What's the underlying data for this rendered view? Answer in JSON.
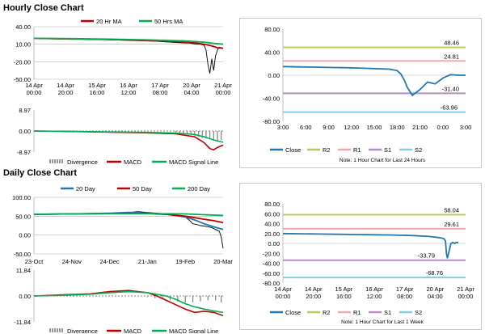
{
  "sections": {
    "hourly_title": "Hourly Close Chart",
    "daily_title": "Daily Close Chart"
  },
  "colors": {
    "ma20": "#c00000",
    "ma50": "#00b050",
    "close": "#1f77b4",
    "price": "#000000",
    "r2": "#b5cc5a",
    "r1": "#f4a6a6",
    "s1": "#b48cc8",
    "s2": "#7fd0e6",
    "divergence": "#808080",
    "macd": "#c00000",
    "signal": "#00b050",
    "grid": "#b0b0b0",
    "zero": "#000000"
  },
  "chart_data": [
    {
      "id": "hourly_price",
      "type": "line",
      "legend": [
        "20 Hr MA",
        "50 Hrs MA"
      ],
      "x_ticks": [
        "14 Apr\n00:00",
        "14 Apr\n20:00",
        "15 Apr\n16:00",
        "16 Apr\n12:00",
        "17 Apr\n08:00",
        "20 Apr\n04:00",
        "21 Apr\n00:00"
      ],
      "y_ticks": [
        "40.00",
        "10.00",
        "-20.00",
        "-50.00"
      ],
      "ylim": [
        -50,
        40
      ],
      "series": [
        {
          "name": "price",
          "x": [
            0,
            5,
            10,
            15,
            20,
            25,
            30,
            35,
            40,
            45,
            50,
            55,
            60,
            65,
            70,
            75,
            80,
            82,
            84,
            86,
            88,
            90,
            91,
            92,
            93,
            94,
            95,
            96,
            97,
            98,
            100
          ],
          "values": [
            20,
            19.5,
            19,
            18.8,
            18.6,
            18.4,
            18.2,
            18,
            17.5,
            17,
            16.5,
            16,
            15.5,
            15,
            14,
            13,
            12,
            12,
            11,
            10,
            10,
            8,
            0,
            -25,
            -40,
            -15,
            -35,
            -10,
            0,
            5,
            3
          ]
        },
        {
          "name": "20 Hr MA",
          "x": [
            0,
            20,
            40,
            60,
            80,
            85,
            90,
            94,
            97,
            100
          ],
          "values": [
            20,
            19,
            18,
            16.5,
            14,
            12.5,
            10,
            7,
            4,
            3
          ]
        },
        {
          "name": "50 Hrs MA",
          "x": [
            0,
            20,
            40,
            60,
            80,
            90,
            95,
            100
          ],
          "values": [
            20,
            19.5,
            18.7,
            17.5,
            15.5,
            13.5,
            11.5,
            10
          ]
        }
      ]
    },
    {
      "id": "hourly_macd",
      "type": "bar",
      "legend": [
        "Divergence",
        "MACD",
        "MACD Signal Line"
      ],
      "y_ticks": [
        "8.97",
        "0.00",
        "-8.97"
      ],
      "ylim": [
        -8.97,
        8.97
      ],
      "series": [
        {
          "name": "Divergence",
          "x": [
            75,
            77,
            79,
            81,
            83,
            85,
            87,
            89,
            91,
            93,
            95,
            97,
            99
          ],
          "values": [
            -0.5,
            -0.8,
            -1,
            -1.2,
            -1.5,
            -2,
            -2.5,
            -3,
            -3.2,
            -3.5,
            -3.8,
            -4,
            -3.8
          ]
        },
        {
          "name": "MACD",
          "x": [
            0,
            20,
            40,
            60,
            75,
            85,
            90,
            93,
            95,
            97,
            100
          ],
          "values": [
            0,
            -0.2,
            -0.5,
            -0.8,
            -1.2,
            -2.5,
            -5,
            -7.5,
            -8,
            -7,
            -6
          ]
        },
        {
          "name": "MACD Signal Line",
          "x": [
            0,
            20,
            40,
            60,
            75,
            85,
            90,
            95,
            100
          ],
          "values": [
            0,
            -0.2,
            -0.4,
            -0.6,
            -0.9,
            -1.5,
            -2.5,
            -3.8,
            -4.8
          ]
        }
      ]
    },
    {
      "id": "hourly_pivots",
      "type": "line",
      "legend": [
        "Close",
        "R2",
        "R1",
        "S1",
        "S2"
      ],
      "note": "Note: 1 Hour Chart for Last 24 Hours",
      "x_ticks": [
        "3:00",
        "6:00",
        "9:00",
        "12:00",
        "15:00",
        "18:00",
        "21:00",
        "0:00",
        "3:00"
      ],
      "y_ticks": [
        "80.00",
        "40.00",
        "0.00",
        "-40.00",
        "-80.00"
      ],
      "ylim": [
        -80,
        80
      ],
      "levels": {
        "R2": 48.46,
        "R1": 24.81,
        "S1": -31.4,
        "S2": -63.96
      },
      "level_labels": {
        "R2": "48.46",
        "R1": "24.81",
        "S1": "-31.40",
        "S2": "-63.96"
      },
      "close": {
        "x": [
          0,
          2,
          4,
          6,
          8,
          10,
          12,
          14,
          15,
          15.5,
          16,
          16.3,
          17,
          18,
          19,
          20,
          21,
          22,
          23,
          24
        ],
        "values": [
          15,
          14.5,
          14,
          13.5,
          13,
          12.5,
          11.5,
          10.5,
          8,
          2,
          -10,
          -20,
          -35,
          -25,
          -12,
          -15,
          -5,
          1,
          0,
          0
        ]
      }
    },
    {
      "id": "daily_price",
      "type": "line",
      "legend": [
        "20 Day",
        "50 Day",
        "200 Day"
      ],
      "x_ticks": [
        "23-Oct",
        "24-Nov",
        "24-Dec",
        "21-Jan",
        "19-Feb",
        "20-Mar"
      ],
      "y_ticks": [
        "100.00",
        "50.00",
        "0.00",
        "-50.00"
      ],
      "ylim": [
        -50,
        100
      ],
      "series": [
        {
          "name": "price",
          "x": [
            0,
            10,
            20,
            30,
            40,
            50,
            55,
            60,
            65,
            70,
            75,
            80,
            82,
            84,
            86,
            88,
            90,
            92,
            94,
            96,
            98,
            99,
            100
          ],
          "values": [
            55,
            56,
            56,
            57,
            58,
            60,
            62,
            60,
            58,
            56,
            53,
            48,
            40,
            30,
            28,
            25,
            24,
            22,
            20,
            15,
            10,
            -5,
            -35
          ]
        },
        {
          "name": "20 Day",
          "x": [
            0,
            20,
            40,
            50,
            60,
            70,
            80,
            85,
            90,
            95,
            100
          ],
          "values": [
            55,
            56,
            58,
            60,
            58,
            55,
            48,
            40,
            30,
            22,
            15
          ]
        },
        {
          "name": "50 Day",
          "x": [
            0,
            20,
            40,
            50,
            60,
            70,
            80,
            85,
            90,
            95,
            100
          ],
          "values": [
            55,
            56,
            57,
            58,
            57,
            55,
            50,
            46,
            42,
            38,
            33
          ]
        },
        {
          "name": "200 Day",
          "x": [
            0,
            20,
            40,
            60,
            80,
            90,
            100
          ],
          "values": [
            55,
            56,
            57,
            57,
            56,
            54,
            52
          ]
        }
      ]
    },
    {
      "id": "daily_macd",
      "type": "bar",
      "legend": [
        "Divergence",
        "MACD",
        "MACD Signal Line"
      ],
      "y_ticks": [
        "11.84",
        "0.00",
        "-11.84"
      ],
      "ylim": [
        -11.84,
        11.84
      ],
      "series": [
        {
          "name": "Divergence",
          "x": [
            60,
            64,
            68,
            72,
            76,
            80,
            84,
            88,
            92,
            96,
            99
          ],
          "values": [
            -0.5,
            -1,
            -1.5,
            -2,
            -2.5,
            -3,
            -3,
            -2.5,
            -2,
            -2,
            -3
          ]
        },
        {
          "name": "MACD",
          "x": [
            0,
            15,
            30,
            40,
            50,
            60,
            65,
            70,
            75,
            80,
            85,
            90,
            95,
            100
          ],
          "values": [
            0,
            0.5,
            1,
            2,
            2.5,
            1.5,
            0,
            -2,
            -4,
            -6,
            -7.5,
            -7,
            -7.5,
            -9
          ]
        },
        {
          "name": "MACD Signal Line",
          "x": [
            0,
            15,
            30,
            40,
            50,
            60,
            70,
            75,
            80,
            85,
            90,
            95,
            100
          ],
          "values": [
            0,
            0.3,
            0.8,
            1.5,
            2,
            1.5,
            0,
            -1.5,
            -3.5,
            -5,
            -6,
            -6.8,
            -7.5
          ]
        }
      ]
    },
    {
      "id": "daily_pivots",
      "type": "line",
      "legend": [
        "Close",
        "R2",
        "R1",
        "S1",
        "S2"
      ],
      "note": "Note: 1 Hour Chart for Last 1 Week",
      "x_ticks": [
        "14 Apr\n00:00",
        "14 Apr\n20:00",
        "15 Apr\n16:00",
        "16 Apr\n12:00",
        "17 Apr\n08:00",
        "20 Apr\n04:00",
        "21 Apr\n00:00"
      ],
      "y_ticks": [
        "80.00",
        "60.00",
        "40.00",
        "20.00",
        "0.00",
        "-20.00",
        "-40.00",
        "-60.00",
        "-80.00"
      ],
      "ylim": [
        -80,
        80
      ],
      "levels": {
        "R2": 58.04,
        "R1": 29.61,
        "S1": -33.79,
        "S2": -68.76
      },
      "level_labels": {
        "R2": "58.04",
        "R1": "29.61",
        "S1": "-33.79",
        "S2": "-68.76"
      },
      "close": {
        "x": [
          0,
          10,
          20,
          30,
          40,
          50,
          60,
          70,
          80,
          85,
          88,
          89,
          89.5,
          90,
          91,
          92,
          93,
          94,
          95,
          96
        ],
        "values": [
          20,
          19.5,
          19,
          18.5,
          18,
          17.5,
          17,
          16,
          14,
          12,
          10,
          5,
          -20,
          -30,
          -15,
          0,
          2,
          0,
          2,
          2
        ]
      }
    }
  ]
}
